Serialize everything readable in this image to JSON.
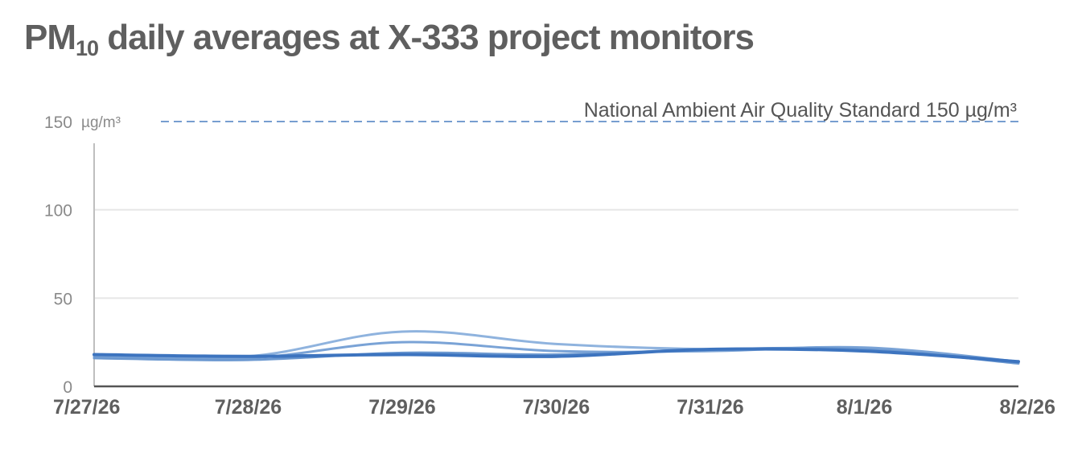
{
  "title": {
    "main": "PM",
    "sub": "10",
    "rest": " daily averages at X-333 project monitors"
  },
  "chart_data": {
    "type": "line",
    "x": [
      "7/27/26",
      "7/28/26",
      "7/29/26",
      "7/30/26",
      "7/31/26",
      "8/1/26",
      "8/2/26"
    ],
    "series": [
      {
        "values": [
          18,
          17,
          31,
          24,
          21,
          21,
          14
        ],
        "color": "#8fb3de"
      },
      {
        "values": [
          17,
          16,
          25,
          20,
          20,
          22,
          14
        ],
        "color": "#7aa3d6"
      },
      {
        "values": [
          16,
          15,
          19,
          18,
          21,
          21,
          13
        ],
        "color": "#6b98d0"
      },
      {
        "values": [
          18,
          17,
          18,
          17,
          21,
          20,
          14
        ],
        "color": "#3d74bf"
      }
    ],
    "ylim": [
      0,
      150
    ],
    "yticks": [
      0,
      50,
      100,
      150
    ],
    "y_unit": "µg/m³",
    "reference_line": {
      "value": 150,
      "label": "National Ambient Air Quality Standard 150 µg/m³",
      "color": "#4a7fc1"
    },
    "grid": true
  }
}
